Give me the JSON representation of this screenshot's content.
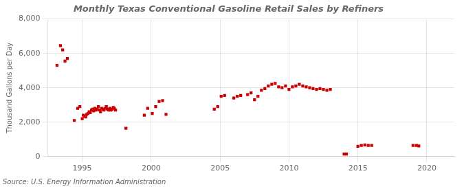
{
  "chart_data": {
    "type": "scatter",
    "title": "Monthly Texas Conventional Gasoline Retail Sales by Refiners",
    "ylabel": "Thousand Gallons per Day",
    "source": "Source: U.S. Energy Information Administration",
    "color": "#cc0000",
    "marker": "square",
    "grid": true,
    "xlim": [
      1992.5,
      2022.0
    ],
    "ylim": [
      0,
      8000
    ],
    "xticks": [
      1995,
      2000,
      2005,
      2010,
      2015,
      2020
    ],
    "yticks": [
      0,
      {
        "value": 2000,
        "label": "2,000"
      },
      {
        "value": 4000,
        "label": "4,000"
      },
      {
        "value": 6000,
        "label": "6,000"
      },
      {
        "value": 8000,
        "label": "8,000"
      }
    ],
    "x": [
      1993.17,
      1993.42,
      1993.58,
      1993.75,
      1993.92,
      1994.42,
      1994.67,
      1994.83,
      1995.0,
      1995.08,
      1995.17,
      1995.25,
      1995.33,
      1995.42,
      1995.5,
      1995.58,
      1995.67,
      1995.75,
      1995.83,
      1995.92,
      1996.0,
      1996.08,
      1996.17,
      1996.25,
      1996.33,
      1996.42,
      1996.5,
      1996.58,
      1996.67,
      1996.75,
      1996.83,
      1996.92,
      1997.0,
      1997.08,
      1997.17,
      1997.25,
      1997.33,
      1997.42,
      1998.17,
      1999.5,
      1999.75,
      2000.08,
      2000.33,
      2000.58,
      2000.83,
      2001.08,
      2004.58,
      2004.83,
      2005.08,
      2005.33,
      2006.0,
      2006.25,
      2006.5,
      2007.0,
      2007.25,
      2007.5,
      2007.75,
      2008.0,
      2008.25,
      2008.5,
      2008.75,
      2009.0,
      2009.25,
      2009.5,
      2009.75,
      2010.0,
      2010.25,
      2010.5,
      2010.75,
      2011.0,
      2011.25,
      2011.5,
      2011.75,
      2012.0,
      2012.25,
      2012.5,
      2012.75,
      2013.0,
      2014.0,
      2014.17,
      2015.0,
      2015.25,
      2015.5,
      2015.75,
      2016.0,
      2019.0,
      2019.25,
      2019.42
    ],
    "values": [
      5300,
      6450,
      6200,
      5550,
      5700,
      2100,
      2800,
      2900,
      2200,
      2400,
      2350,
      2300,
      2450,
      2500,
      2600,
      2550,
      2700,
      2750,
      2650,
      2800,
      2700,
      2750,
      2900,
      2700,
      2600,
      2800,
      2750,
      2700,
      2800,
      2900,
      2750,
      2700,
      2800,
      2700,
      2750,
      2850,
      2800,
      2700,
      1650,
      2400,
      2800,
      2500,
      2900,
      3200,
      3250,
      2450,
      2750,
      2900,
      3500,
      3550,
      3400,
      3500,
      3550,
      3600,
      3700,
      3300,
      3500,
      3850,
      3950,
      4100,
      4200,
      4250,
      4050,
      4000,
      4100,
      3900,
      4050,
      4100,
      4200,
      4100,
      4050,
      4000,
      3950,
      3900,
      3950,
      3900,
      3850,
      3900,
      150,
      150,
      600,
      650,
      680,
      650,
      650,
      650,
      650,
      620
    ]
  }
}
